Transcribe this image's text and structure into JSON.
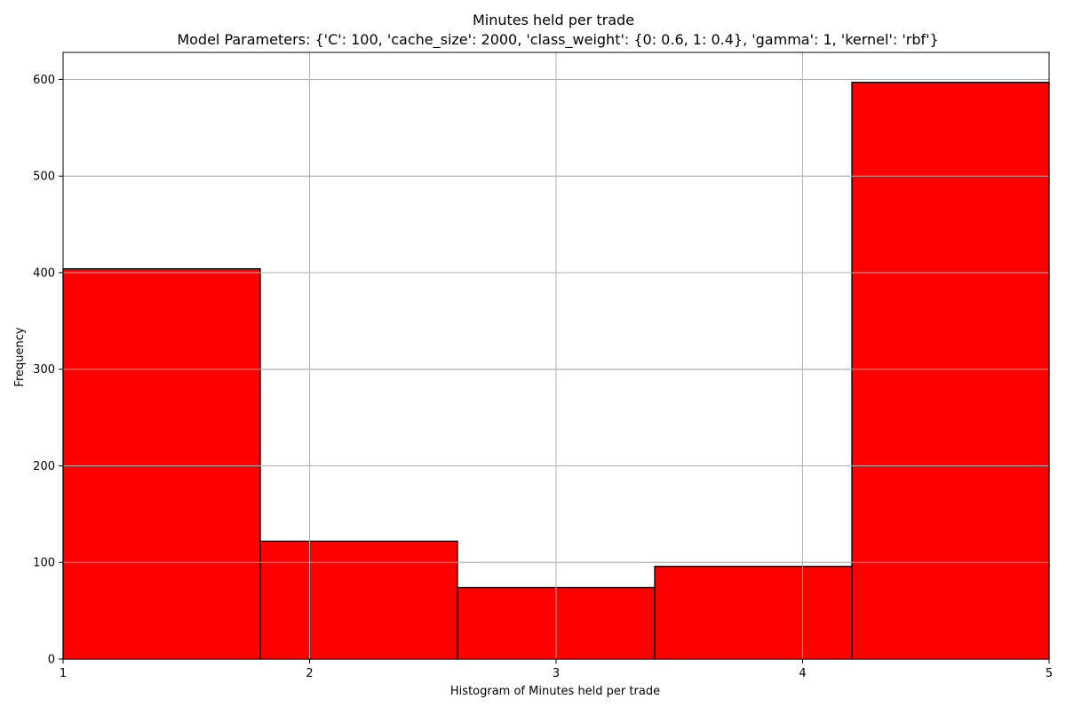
{
  "chart_data": {
    "type": "bar",
    "title": "Minutes held per trade",
    "subtitle": "Model Parameters: {'C': 100, 'cache_size': 2000, 'class_weight': {0: 0.6, 1: 0.4}, 'gamma': 1, 'kernel': 'rbf'}",
    "xlabel": "Histogram of Minutes held per trade",
    "ylabel": "Frequency",
    "bins": [
      {
        "start": 1.0,
        "end": 1.8,
        "value": 404
      },
      {
        "start": 1.8,
        "end": 2.6,
        "value": 122
      },
      {
        "start": 2.6,
        "end": 3.4,
        "value": 74
      },
      {
        "start": 3.4,
        "end": 4.2,
        "value": 96
      },
      {
        "start": 4.2,
        "end": 5.0,
        "value": 597
      }
    ],
    "xlim": [
      1,
      5
    ],
    "ylim": [
      0,
      628
    ],
    "xticks": [
      1,
      2,
      3,
      4,
      5
    ],
    "yticks": [
      0,
      100,
      200,
      300,
      400,
      500,
      600
    ],
    "grid": true,
    "bar_color": "#ff0000",
    "edge_color": "#000000"
  }
}
